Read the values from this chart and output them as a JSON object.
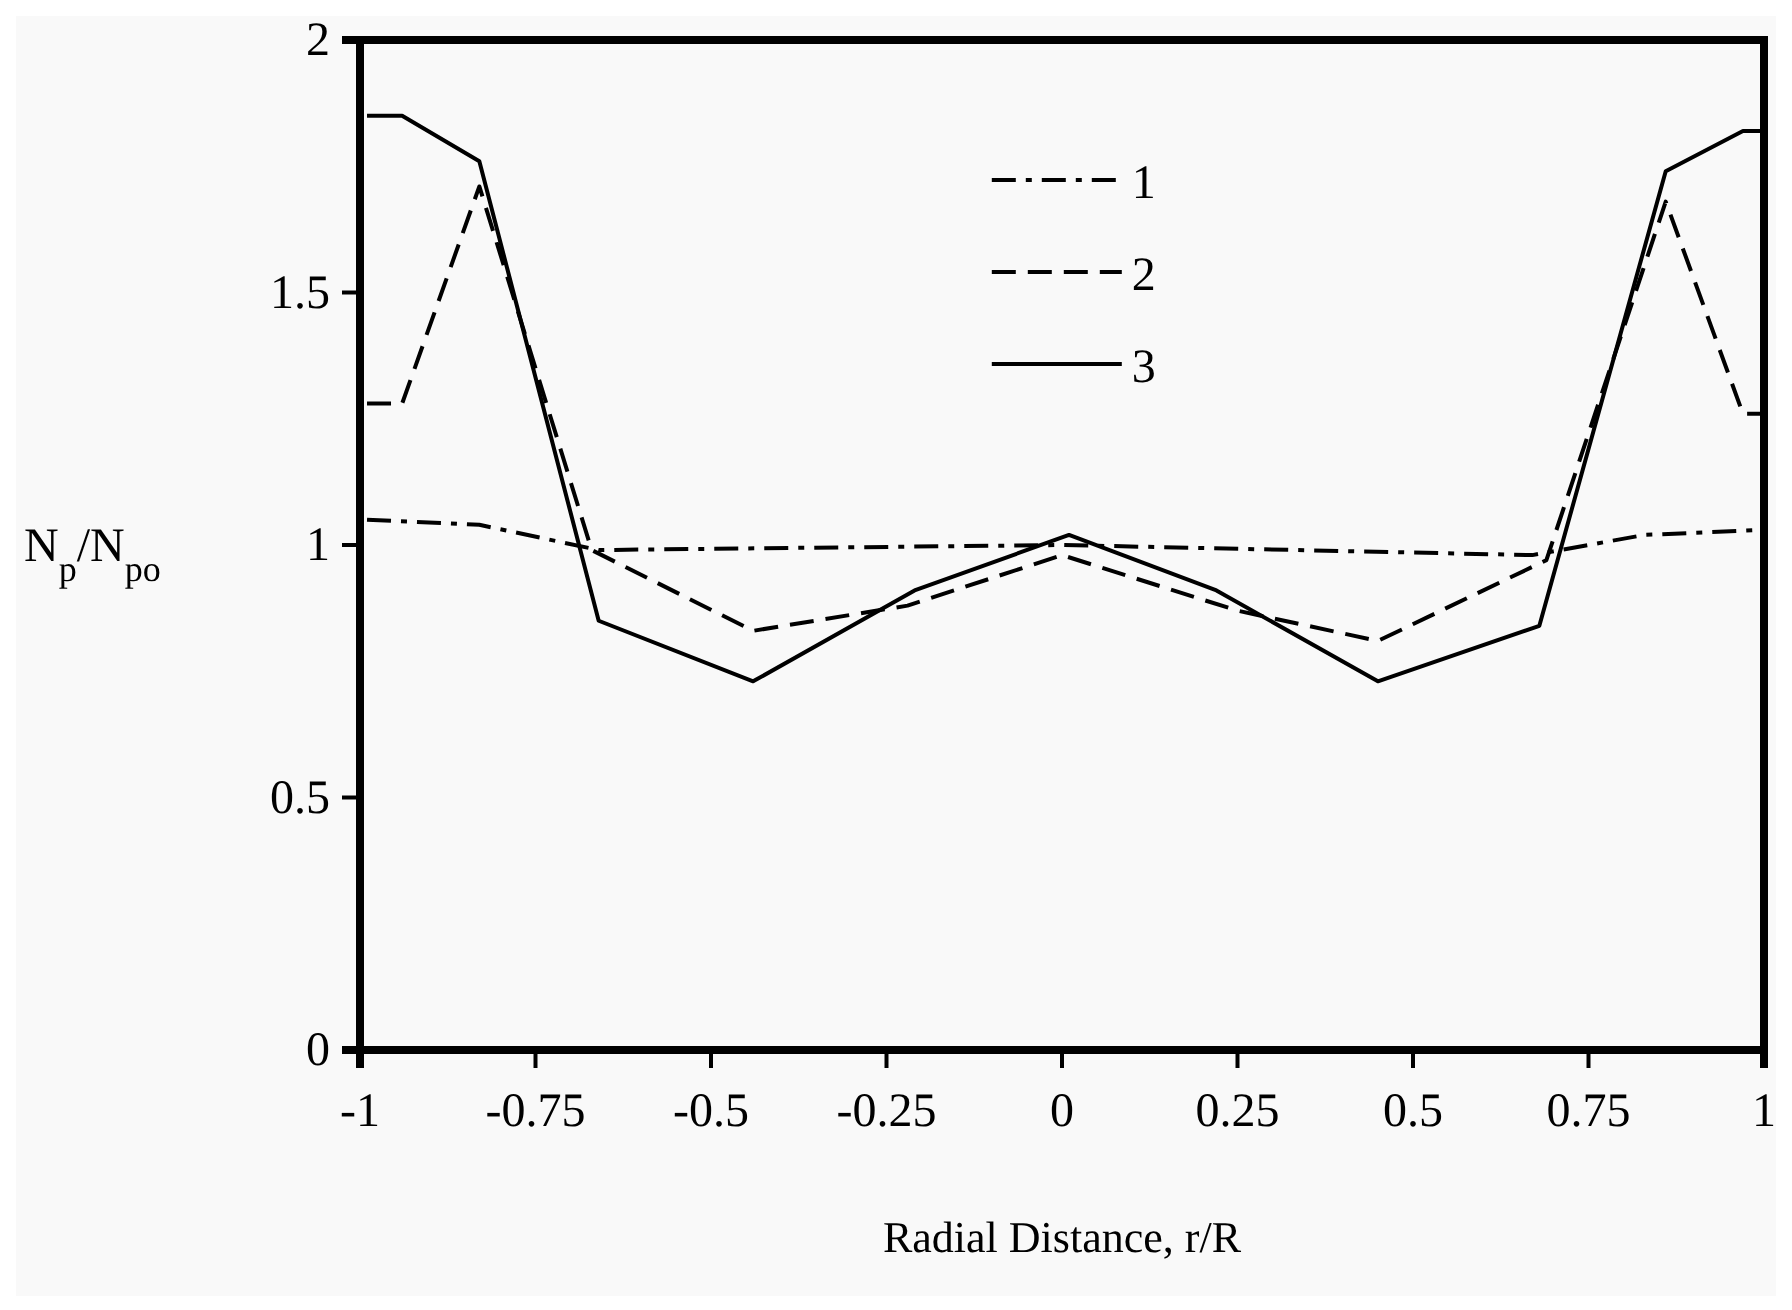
{
  "chart_data": {
    "type": "line",
    "xlabel": "Radial Distance, r/R",
    "ylabel": "N$_{p}$/N$_{po}$",
    "xlim": [
      -1,
      1
    ],
    "xticks": [
      -1,
      -0.75,
      -0.5,
      -0.25,
      0,
      0.25,
      0.5,
      0.75,
      1
    ],
    "ylim": [
      0,
      2
    ],
    "yticks": [
      0,
      0.5,
      1,
      1.5,
      2
    ],
    "grid": false,
    "legend": "top",
    "series": [
      {
        "name": "1",
        "color": "#000000",
        "line_style": "dashdot",
        "x": [
          -0.99,
          -0.83,
          -0.66,
          0,
          0.67,
          0.83,
          1.0
        ],
        "values": [
          1.05,
          1.04,
          0.99,
          1.0,
          0.98,
          1.02,
          1.03
        ]
      },
      {
        "name": "2",
        "color": "#000000",
        "line_style": "dashed",
        "x": [
          -0.99,
          -0.94,
          -0.83,
          -0.67,
          -0.44,
          -0.22,
          0,
          0.25,
          0.45,
          0.69,
          0.86,
          0.97,
          1.0
        ],
        "values": [
          1.28,
          1.28,
          1.71,
          0.99,
          0.83,
          0.88,
          0.98,
          0.87,
          0.81,
          0.97,
          1.68,
          1.26,
          1.26
        ]
      },
      {
        "name": "3",
        "color": "#000000",
        "line_style": "solid",
        "x": [
          -0.99,
          -0.94,
          -0.83,
          -0.66,
          -0.44,
          -0.21,
          0.01,
          0.22,
          0.45,
          0.68,
          0.86,
          0.97,
          1.0
        ],
        "values": [
          1.85,
          1.85,
          1.76,
          0.85,
          0.73,
          0.91,
          1.02,
          0.91,
          0.73,
          0.84,
          1.74,
          1.82,
          1.82
        ]
      }
    ]
  }
}
